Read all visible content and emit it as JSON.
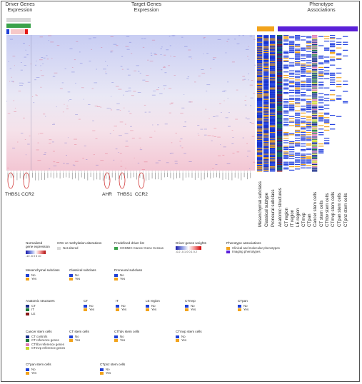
{
  "header": {
    "driver_title_1": "Driver Genes",
    "driver_title_2": "Expression",
    "target_title_1": "Target Genes",
    "target_title_2": "Expression",
    "pheno_title_1": "Phenotype",
    "pheno_title_2": "Associations"
  },
  "callouts": {
    "left": [
      "THBS1",
      "CCR2"
    ],
    "middle": [
      "AHR",
      "THBS1",
      "CCR2"
    ]
  },
  "phenotype_columns": [
    "Mesenchymal subclass",
    "Classical subtype",
    "Proneural subclass",
    "Anatomic structures",
    "CT region",
    "IT region",
    "LE region",
    "CTmvp",
    "CTpan",
    "Cancer stem cells",
    "CT stem cells",
    "CThbv stem cells",
    "CTmvp stem cells",
    "CTpan stem cells",
    "CTpnz stem cells"
  ],
  "legends": {
    "normalized": {
      "title_1": "Normalized",
      "title_2": "gene expression",
      "ticks": "-10 -5   0   5  10"
    },
    "cnv": {
      "title": "CNV or methylation alterations",
      "item": "Not altered",
      "color": "#d8d8d8"
    },
    "driver_list": {
      "title": "Predefined driver list",
      "item": "COSMIC Cancer Gene Census",
      "color": "#3aa24a"
    },
    "weights": {
      "title": "Driver genes weights",
      "ticks": "-0.2 -0.1   0   0.1  0.2"
    },
    "pheno_assoc": {
      "title": "Phenotype associations",
      "items": [
        {
          "label": "Clinical and molecular phenotypes",
          "color": "#f2a31b"
        },
        {
          "label": "Imaging phenotypes",
          "color": "#5a20d8"
        }
      ]
    },
    "mesenchymal": {
      "title": "Mesenchymal subclass",
      "items": [
        {
          "label": "No",
          "color": "#1f3fd6"
        },
        {
          "label": "Yes",
          "color": "#f2a31b"
        }
      ]
    },
    "classical": {
      "title": "Classical subclass",
      "items": [
        {
          "label": "No",
          "color": "#1f3fd6"
        },
        {
          "label": "Yes",
          "color": "#f2a31b"
        }
      ]
    },
    "proneural": {
      "title": "Proneural subclass",
      "items": [
        {
          "label": "No",
          "color": "#1f3fd6"
        },
        {
          "label": "Yes",
          "color": "#f2a31b"
        }
      ]
    },
    "anatomic": {
      "title": "Anatomic structures",
      "items": [
        {
          "label": "CT",
          "color": "#1a2f8a"
        },
        {
          "label": "IT",
          "color": "#1c7a3a"
        },
        {
          "label": "LE",
          "color": "#8a1a1a"
        }
      ]
    },
    "ct": {
      "title": "CT",
      "items": [
        {
          "label": "No",
          "color": "#1f3fd6"
        },
        {
          "label": "Yes",
          "color": "#f2a31b"
        }
      ]
    },
    "it": {
      "title": "IT",
      "items": [
        {
          "label": "No",
          "color": "#1f3fd6"
        },
        {
          "label": "Yes",
          "color": "#f2a31b"
        }
      ]
    },
    "le": {
      "title": "LE region",
      "items": [
        {
          "label": "No",
          "color": "#1f3fd6"
        },
        {
          "label": "Yes",
          "color": "#f2a31b"
        }
      ]
    },
    "ctmvp": {
      "title": "CTmvp",
      "items": [
        {
          "label": "No",
          "color": "#1f3fd6"
        },
        {
          "label": "Yes",
          "color": "#f2a31b"
        }
      ]
    },
    "ctpan": {
      "title": "CTpan",
      "items": [
        {
          "label": "No",
          "color": "#1f3fd6"
        },
        {
          "label": "Yes",
          "color": "#f2a31b"
        }
      ]
    },
    "cancer_stem": {
      "title": "Cancer stem cells",
      "items": [
        {
          "label": "CT controls",
          "color": "#1a2f8a"
        },
        {
          "label": "CT reference genes",
          "color": "#1c7a3a"
        },
        {
          "label": "CThbv reference genes",
          "color": "#e07ab8"
        },
        {
          "label": "CTmvp reference genes",
          "color": "#c8d62a"
        }
      ]
    },
    "ct_stem": {
      "title": "CT stem cells",
      "items": [
        {
          "label": "No",
          "color": "#1f3fd6"
        },
        {
          "label": "Yes",
          "color": "#f2a31b"
        }
      ]
    },
    "cthbv_stem": {
      "title": "CThbv stem cells",
      "items": [
        {
          "label": "No",
          "color": "#1f3fd6"
        },
        {
          "label": "Yes",
          "color": "#f2a31b"
        }
      ]
    },
    "ctmvp_stem": {
      "title": "CTmvp stem cells",
      "items": [
        {
          "label": "No",
          "color": "#1f3fd6"
        },
        {
          "label": "Yes",
          "color": "#f2a31b"
        }
      ]
    },
    "ctpan_stem": {
      "title": "CTpan stem cells",
      "items": [
        {
          "label": "No",
          "color": "#1f3fd6"
        },
        {
          "label": "Yes",
          "color": "#f2a31b"
        }
      ]
    },
    "ctpnz_stem": {
      "title": "CTpnz stem cells",
      "items": [
        {
          "label": "No",
          "color": "#1f3fd6"
        },
        {
          "label": "Yes",
          "color": "#f2a31b"
        }
      ]
    }
  },
  "colors": {
    "blue": "#1f3fd6",
    "orange": "#f2a31b",
    "purple": "#5a20d8",
    "green": "#3aa24a",
    "grey": "#d8d8d8",
    "callout_red": "#d23a3a"
  }
}
